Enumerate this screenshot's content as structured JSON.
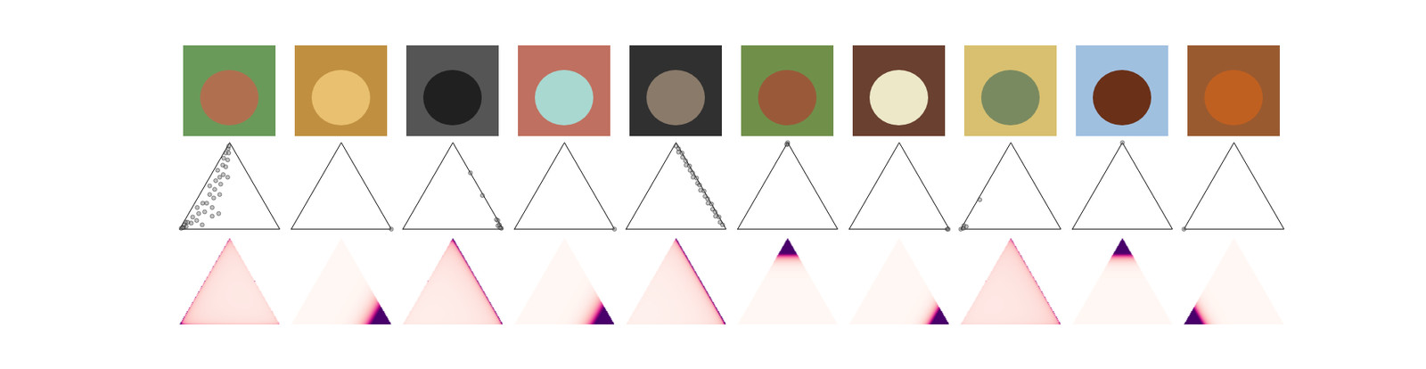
{
  "chart_data": [
    {
      "type": "simplex",
      "image_background": "#6a9a5a",
      "image_subject": "#b07050",
      "points": [
        [
          0.98,
          0.01,
          0.01
        ],
        [
          0.95,
          0.03,
          0.02
        ],
        [
          0.92,
          0.05,
          0.03
        ],
        [
          0.9,
          0.02,
          0.08
        ],
        [
          0.85,
          0.08,
          0.07
        ],
        [
          0.88,
          0.04,
          0.08
        ],
        [
          0.8,
          0.06,
          0.14
        ],
        [
          0.78,
          0.12,
          0.1
        ],
        [
          0.72,
          0.1,
          0.18
        ],
        [
          0.7,
          0.05,
          0.25
        ],
        [
          0.65,
          0.15,
          0.2
        ],
        [
          0.62,
          0.08,
          0.3
        ],
        [
          0.58,
          0.12,
          0.3
        ],
        [
          0.55,
          0.2,
          0.25
        ],
        [
          0.5,
          0.1,
          0.4
        ],
        [
          0.48,
          0.16,
          0.36
        ],
        [
          0.45,
          0.05,
          0.5
        ],
        [
          0.42,
          0.12,
          0.46
        ],
        [
          0.4,
          0.2,
          0.4
        ],
        [
          0.36,
          0.08,
          0.56
        ],
        [
          0.33,
          0.15,
          0.52
        ],
        [
          0.3,
          0.1,
          0.6
        ],
        [
          0.28,
          0.04,
          0.68
        ],
        [
          0.25,
          0.12,
          0.63
        ],
        [
          0.22,
          0.18,
          0.6
        ],
        [
          0.2,
          0.06,
          0.74
        ],
        [
          0.18,
          0.1,
          0.72
        ],
        [
          0.15,
          0.03,
          0.82
        ],
        [
          0.12,
          0.08,
          0.8
        ],
        [
          0.1,
          0.02,
          0.88
        ],
        [
          0.07,
          0.05,
          0.88
        ],
        [
          0.05,
          0.02,
          0.93
        ],
        [
          0.03,
          0.01,
          0.96
        ],
        [
          0.6,
          0.25,
          0.15
        ],
        [
          0.52,
          0.3,
          0.18
        ],
        [
          0.75,
          0.2,
          0.05
        ],
        [
          0.96,
          0.02,
          0.02
        ],
        [
          0.93,
          0.02,
          0.05
        ]
      ],
      "alpha": [
        0.8,
        0.6,
        0.7
      ],
      "density_domain": [
        0,
        15
      ]
    },
    {
      "type": "simplex",
      "image_background": "#c09040",
      "image_subject": "#e8c070",
      "points": [
        [
          0,
          1,
          0
        ]
      ],
      "alpha": [
        1,
        10,
        1
      ],
      "density_domain": [
        0,
        15
      ]
    },
    {
      "type": "simplex",
      "image_background": "#555555",
      "image_subject": "#202020",
      "points": [
        [
          0.01,
          0.98,
          0.01
        ],
        [
          0.02,
          0.96,
          0.02
        ],
        [
          0.01,
          0.94,
          0.05
        ],
        [
          0.03,
          0.93,
          0.04
        ],
        [
          0.0,
          0.9,
          0.1
        ],
        [
          0.01,
          0.88,
          0.11
        ],
        [
          0.01,
          0.6,
          0.39
        ],
        [
          0.0,
          0.35,
          0.65
        ]
      ],
      "alpha": [
        0.4,
        0.8,
        0.9
      ],
      "density_domain": [
        0,
        15
      ]
    },
    {
      "type": "simplex",
      "image_background": "#c07060",
      "image_subject": "#a8d8d0",
      "points": [
        [
          0,
          1,
          0
        ]
      ],
      "alpha": [
        1,
        10,
        1
      ],
      "density_domain": [
        0,
        15
      ]
    },
    {
      "type": "simplex",
      "image_background": "#303030",
      "image_subject": "#8a7a6a",
      "points": [
        [
          0.02,
          0.02,
          0.96
        ],
        [
          0.01,
          0.06,
          0.93
        ],
        [
          0.03,
          0.08,
          0.89
        ],
        [
          0.0,
          0.12,
          0.88
        ],
        [
          0.02,
          0.15,
          0.83
        ],
        [
          0.01,
          0.2,
          0.79
        ],
        [
          0.03,
          0.23,
          0.74
        ],
        [
          0.0,
          0.27,
          0.73
        ],
        [
          0.02,
          0.3,
          0.68
        ],
        [
          0.01,
          0.34,
          0.65
        ],
        [
          0.03,
          0.37,
          0.6
        ],
        [
          0.0,
          0.41,
          0.59
        ],
        [
          0.02,
          0.45,
          0.53
        ],
        [
          0.01,
          0.48,
          0.51
        ],
        [
          0.03,
          0.52,
          0.45
        ],
        [
          0.0,
          0.56,
          0.44
        ],
        [
          0.02,
          0.6,
          0.38
        ],
        [
          0.01,
          0.64,
          0.35
        ],
        [
          0.03,
          0.67,
          0.3
        ],
        [
          0.0,
          0.71,
          0.29
        ],
        [
          0.02,
          0.75,
          0.23
        ],
        [
          0.01,
          0.79,
          0.2
        ],
        [
          0.03,
          0.82,
          0.15
        ],
        [
          0.0,
          0.86,
          0.14
        ],
        [
          0.02,
          0.9,
          0.08
        ],
        [
          0.01,
          0.94,
          0.05
        ]
      ],
      "alpha": [
        0.3,
        0.9,
        0.9
      ],
      "density_domain": [
        0,
        15
      ]
    },
    {
      "type": "simplex",
      "image_background": "#70904a",
      "image_subject": "#9a5a3a",
      "points": [
        [
          0,
          0,
          1
        ],
        [
          0.01,
          0.01,
          0.98
        ],
        [
          0.02,
          0,
          0.98
        ]
      ],
      "alpha": [
        1,
        1,
        15
      ],
      "density_domain": [
        0,
        15
      ]
    },
    {
      "type": "simplex",
      "image_background": "#6a4030",
      "image_subject": "#ece8c8",
      "points": [
        [
          0.02,
          0.98,
          0
        ],
        [
          0.01,
          0.99,
          0
        ]
      ],
      "alpha": [
        1,
        15,
        1
      ],
      "density_domain": [
        0,
        15
      ]
    },
    {
      "type": "simplex",
      "image_background": "#d8c070",
      "image_subject": "#7a8a60",
      "points": [
        [
          1,
          0,
          0
        ],
        [
          0.97,
          0.02,
          0.01
        ],
        [
          0.95,
          0.01,
          0.04
        ],
        [
          0.93,
          0.04,
          0.03
        ],
        [
          0.64,
          0.02,
          0.34
        ]
      ],
      "alpha": [
        0.6,
        0.85,
        0.85
      ],
      "density_domain": [
        0,
        15
      ]
    },
    {
      "type": "simplex",
      "image_background": "#a0c0e0",
      "image_subject": "#6a3018",
      "points": [
        [
          0,
          0,
          1
        ]
      ],
      "alpha": [
        1,
        1,
        15
      ],
      "density_domain": [
        0,
        15
      ]
    },
    {
      "type": "simplex",
      "image_background": "#9a5a30",
      "image_subject": "#c06020",
      "points": [
        [
          1,
          0,
          0
        ]
      ],
      "alpha": [
        15,
        1,
        1
      ],
      "density_domain": [
        0,
        15
      ]
    }
  ]
}
